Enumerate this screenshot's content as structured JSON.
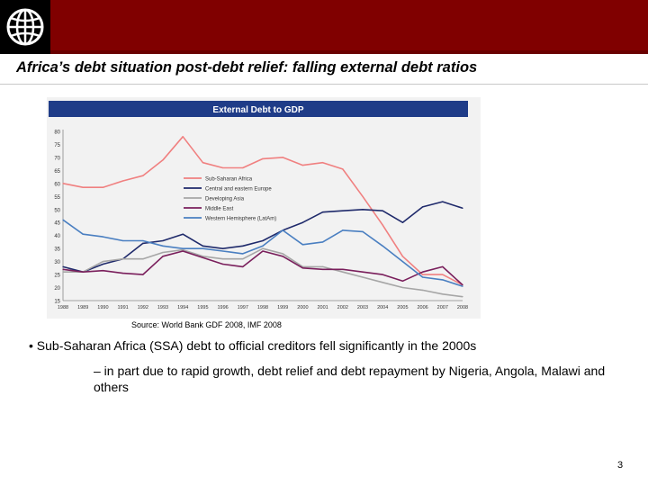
{
  "slide": {
    "title": "Africa’s debt situation post-debt relief: falling external debt ratios",
    "source": "Source: World Bank GDF 2008, IMF 2008",
    "bullet_main": "• Sub-Saharan Africa (SSA) debt to official creditors fell significantly in the 2000s",
    "bullet_sub": "– in part due to rapid growth, debt relief and debt repayment by Nigeria, Angola, Malawi and others",
    "page_number": "3"
  },
  "chart_data": {
    "type": "line",
    "title": "External Debt to GDP",
    "xlabel": "",
    "ylabel": "",
    "x": [
      "1988",
      "1989",
      "1990",
      "1991",
      "1992",
      "1993",
      "1994",
      "1995",
      "1996",
      "1997",
      "1998",
      "1999",
      "2000",
      "2001",
      "2002",
      "2003",
      "2004",
      "2005",
      "2006",
      "2007",
      "2008"
    ],
    "yticks": [
      15,
      20,
      25,
      30,
      35,
      40,
      45,
      50,
      55,
      60,
      65,
      70,
      75,
      80
    ],
    "ylim": [
      15,
      80
    ],
    "grid": false,
    "legend_position": "upper-right inside plot",
    "series": [
      {
        "name": "Sub-Saharan Africa",
        "color": "#f08080",
        "values": [
          60,
          58.5,
          58.5,
          61,
          63,
          69,
          78,
          68,
          66,
          66,
          69.5,
          70,
          67,
          68,
          65.5,
          55,
          44,
          32,
          25,
          25,
          21
        ]
      },
      {
        "name": "Central and eastern Europe",
        "color": "#1f2a6b",
        "values": [
          28,
          26,
          29,
          31,
          37,
          38,
          40.5,
          36,
          35,
          36,
          38,
          42,
          45,
          49,
          49.5,
          50,
          49.5,
          45,
          51,
          53,
          50.5
        ]
      },
      {
        "name": "Developing Asia",
        "color": "#a6a6a6",
        "values": [
          26,
          26,
          30,
          31,
          31,
          33.5,
          34.5,
          32,
          31,
          31,
          35,
          33,
          28,
          28,
          26,
          24,
          22,
          20,
          19,
          17.5,
          16.5
        ]
      },
      {
        "name": "Middle East",
        "color": "#7a1f5c",
        "values": [
          27,
          26,
          26.5,
          25.5,
          25,
          32,
          34,
          31.5,
          29,
          28,
          34,
          32,
          27.5,
          27,
          27,
          26,
          25,
          22.5,
          26,
          28,
          21
        ]
      },
      {
        "name": "Western Hemisphere (LatAm)",
        "color": "#4a7fc1",
        "values": [
          46,
          40.5,
          39.5,
          38,
          38,
          36,
          35,
          35,
          34,
          33,
          36,
          42,
          36.5,
          37.5,
          42,
          41.5,
          36,
          30,
          24,
          23,
          20.5
        ]
      }
    ]
  }
}
